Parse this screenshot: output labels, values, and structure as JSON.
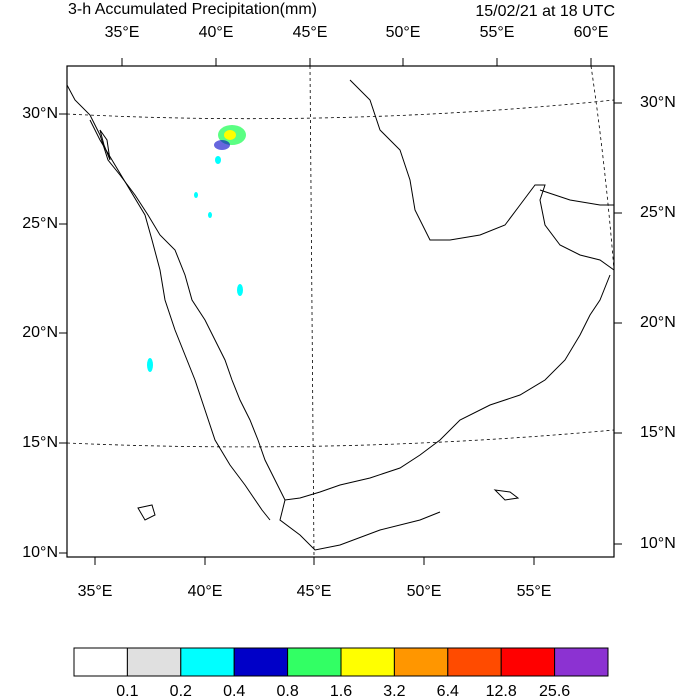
{
  "header": {
    "title": "3-h Accumulated Precipitation(mm)",
    "time": "15/02/21 at 18 UTC"
  },
  "map": {
    "top_lon_labels": [
      "35°E",
      "40°E",
      "45°E",
      "50°E",
      "55°E",
      "60°E"
    ],
    "bottom_lon_labels": [
      "35°E",
      "40°E",
      "45°E",
      "50°E",
      "55°E"
    ],
    "left_lat_labels": [
      "30°N",
      "25°N",
      "20°N",
      "15°N",
      "10°N"
    ],
    "right_lat_labels": [
      "30°N",
      "25°N",
      "20°N",
      "15°N",
      "10°N"
    ]
  },
  "legend": {
    "colors": [
      "#ffffff",
      "#e0e0e0",
      "#00ffff",
      "#0000c8",
      "#32ff64",
      "#ffff00",
      "#ff9600",
      "#ff4b00",
      "#ff0000",
      "#8c32d2"
    ],
    "labels": [
      "0.1",
      "0.2",
      "0.4",
      "0.8",
      "1.6",
      "3.2",
      "6.4",
      "12.8",
      "25.6"
    ]
  }
}
